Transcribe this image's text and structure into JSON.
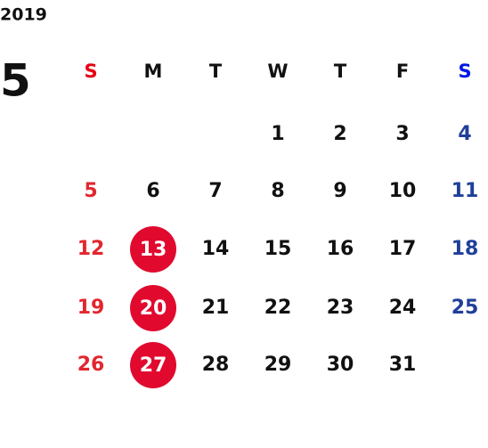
{
  "calendar": {
    "year": "2019",
    "month": "5",
    "weekdays": [
      "S",
      "M",
      "T",
      "W",
      "T",
      "F",
      "S"
    ],
    "weeks": [
      [
        null,
        null,
        null,
        "1",
        "2",
        "3",
        "4"
      ],
      [
        "5",
        "6",
        "7",
        "8",
        "9",
        "10",
        "11"
      ],
      [
        "12",
        {
          "text": "13",
          "circled": true
        },
        "14",
        "15",
        "16",
        "17",
        "18"
      ],
      [
        "19",
        {
          "text": "20",
          "circled": true
        },
        "21",
        "22",
        "23",
        "24",
        "25"
      ],
      [
        "26",
        {
          "text": "27",
          "circled": true
        },
        "28",
        "29",
        "30",
        "31",
        null
      ]
    ]
  }
}
